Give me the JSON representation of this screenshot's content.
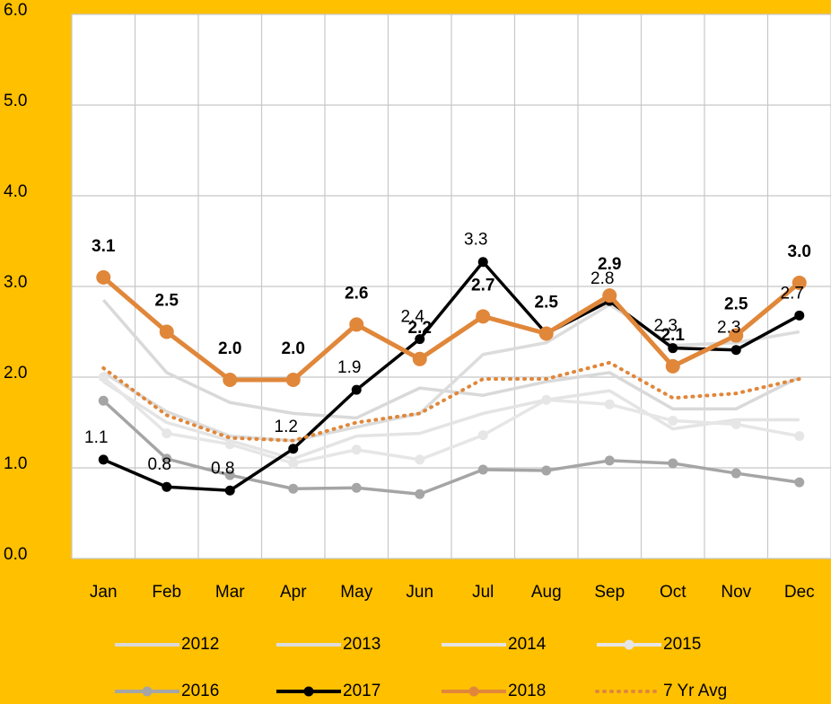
{
  "chart_data": {
    "type": "line",
    "categories": [
      "Jan",
      "Feb",
      "Mar",
      "Apr",
      "May",
      "Jun",
      "Jul",
      "Aug",
      "Sep",
      "Oct",
      "Nov",
      "Dec"
    ],
    "ylim": [
      0,
      6
    ],
    "yticks": [
      {
        "value": 0,
        "label": "0.0"
      },
      {
        "value": 1,
        "label": "1.0"
      },
      {
        "value": 2,
        "label": "2.0"
      },
      {
        "value": 3,
        "label": "3.0"
      },
      {
        "value": 4,
        "label": "4.0"
      },
      {
        "value": 5,
        "label": "5.0"
      },
      {
        "value": 6,
        "label": "6.0"
      }
    ],
    "grid": true,
    "legend": "bottom",
    "series": [
      {
        "name": "2012",
        "color": "#d9d9d9",
        "marker": false,
        "values": [
          2.85,
          2.05,
          1.72,
          1.6,
          1.55,
          1.88,
          1.8,
          1.95,
          2.05,
          1.65,
          1.65,
          2.0
        ]
      },
      {
        "name": "2013",
        "color": "#dcdcdc",
        "marker": false,
        "values": [
          2.05,
          1.62,
          1.35,
          1.3,
          1.45,
          1.6,
          2.25,
          2.38,
          2.8,
          2.35,
          2.38,
          2.5
        ]
      },
      {
        "name": "2014",
        "color": "#e4e4e4",
        "marker": false,
        "values": [
          1.95,
          1.5,
          1.3,
          1.1,
          1.35,
          1.38,
          1.6,
          1.75,
          1.85,
          1.43,
          1.53,
          1.53
        ]
      },
      {
        "name": "2015",
        "color": "#e6e6e6",
        "marker": true,
        "values": [
          2.0,
          1.38,
          1.26,
          1.05,
          1.2,
          1.09,
          1.36,
          1.75,
          1.7,
          1.52,
          1.48,
          1.35
        ]
      },
      {
        "name": "2016",
        "color": "#a5a5a5",
        "marker": true,
        "values": [
          1.74,
          1.1,
          0.92,
          0.77,
          0.78,
          0.71,
          0.98,
          0.97,
          1.08,
          1.05,
          0.94,
          0.84
        ]
      },
      {
        "name": "2017",
        "color": "#000000",
        "marker": true,
        "values": [
          1.09,
          0.79,
          0.75,
          1.21,
          1.86,
          2.42,
          3.27,
          2.48,
          2.84,
          2.32,
          2.3,
          2.68
        ],
        "value_labels": [
          "1.1",
          "0.8",
          "0.8",
          "1.2",
          "1.9",
          "2.4",
          "3.3",
          null,
          "2.8",
          "2.3",
          "2.3",
          "2.7"
        ]
      },
      {
        "name": "2018",
        "color": "#E0873A",
        "marker": true,
        "values": [
          3.1,
          2.5,
          1.97,
          1.97,
          2.58,
          2.2,
          2.67,
          2.48,
          2.9,
          2.12,
          2.46,
          3.04
        ],
        "value_labels": [
          "3.1",
          "2.5",
          "2.0",
          "2.0",
          "2.6",
          "2.2",
          "2.7",
          "2.5",
          "2.9",
          "2.1",
          "2.5",
          "3.0"
        ]
      },
      {
        "name": "7 Yr Avg",
        "color": "#E0873A",
        "marker": false,
        "dash": "dotted",
        "values": [
          2.1,
          1.58,
          1.33,
          1.3,
          1.5,
          1.6,
          1.98,
          1.98,
          2.16,
          1.77,
          1.82,
          1.98
        ]
      }
    ]
  }
}
